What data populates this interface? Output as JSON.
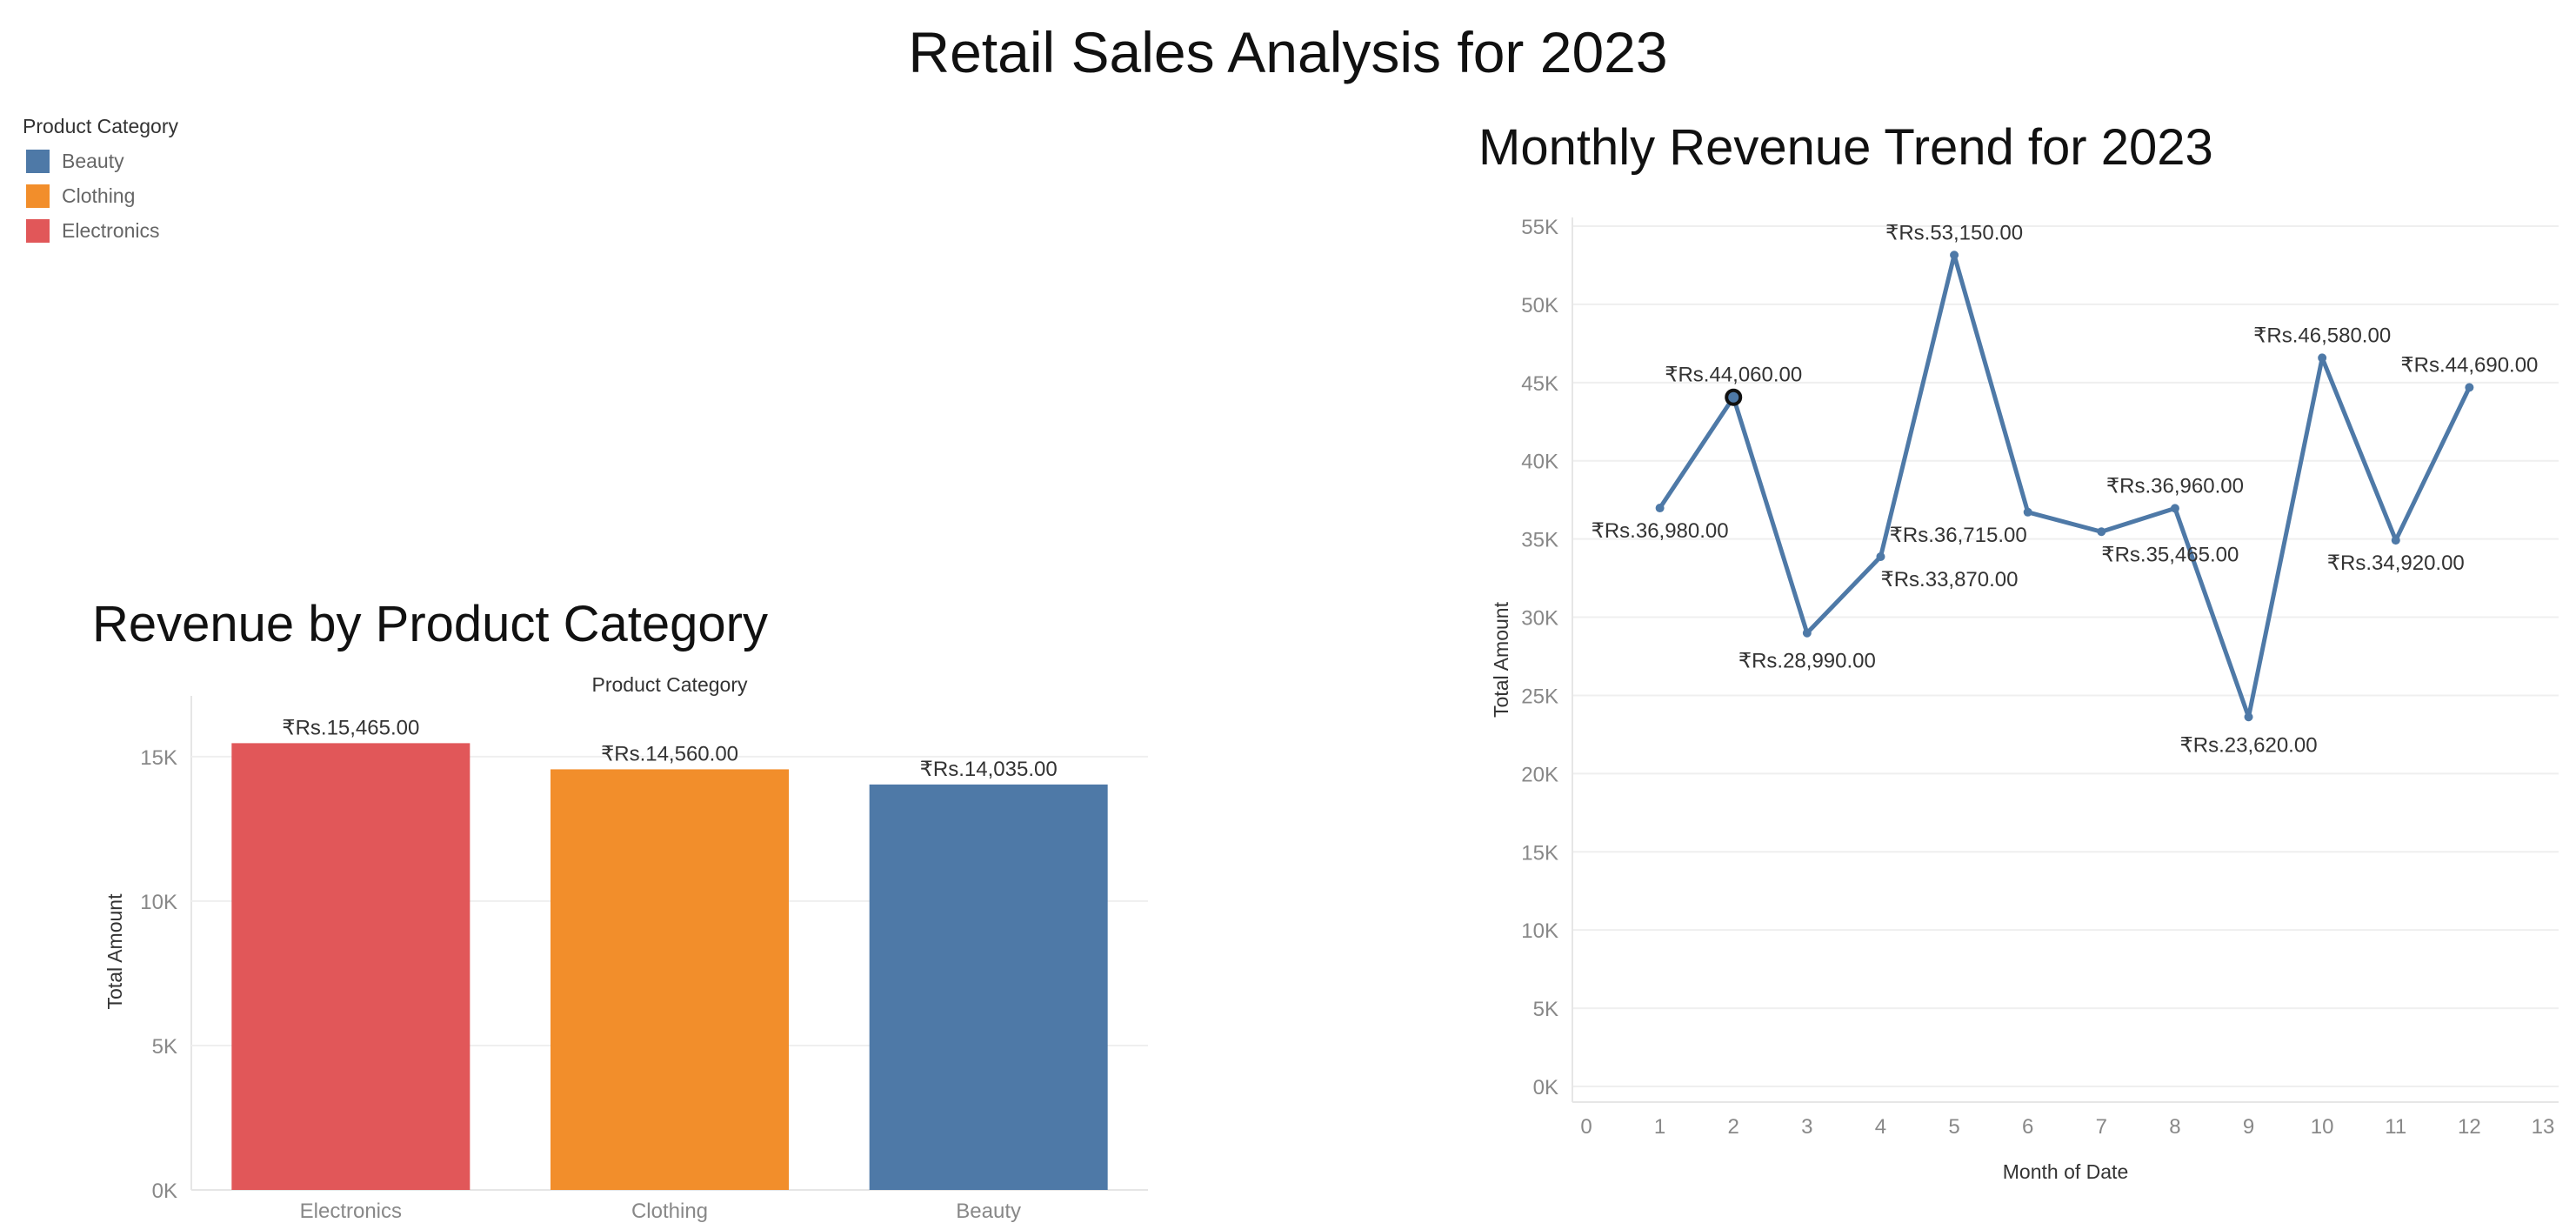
{
  "dashboard": {
    "title": "Retail Sales Analysis for 2023"
  },
  "legend": {
    "title": "Product Category",
    "items": [
      {
        "label": "Beauty",
        "color": "#4E79A7"
      },
      {
        "label": "Clothing",
        "color": "#F28E2B"
      },
      {
        "label": "Electronics",
        "color": "#E15759"
      }
    ]
  },
  "bar_chart": {
    "title": "Revenue by Product Category"
  },
  "line_chart": {
    "title": "Monthly Revenue Trend for 2023"
  },
  "chart_data": [
    {
      "type": "bar",
      "title": "Revenue by Product Category",
      "column_header": "Product Category",
      "categories": [
        "Electronics",
        "Clothing",
        "Beauty"
      ],
      "values": [
        15465,
        14560,
        14035
      ],
      "data_labels": [
        "₹Rs.15,465.00",
        "₹Rs.14,560.00",
        "₹Rs.14,035.00"
      ],
      "colors": [
        "#E15759",
        "#F28E2B",
        "#4E79A7"
      ],
      "ylabel": "Total Amount",
      "xlabel": "",
      "ylim": [
        0,
        16500
      ],
      "yticks": [
        0,
        5000,
        10000,
        15000
      ],
      "ytick_labels": [
        "0K",
        "5K",
        "10K",
        "15K"
      ],
      "grid": true
    },
    {
      "type": "line",
      "title": "Monthly Revenue Trend for 2023",
      "xlabel": "Month of Date",
      "ylabel": "Total Amount",
      "x": [
        1,
        2,
        3,
        4,
        5,
        6,
        7,
        8,
        9,
        10,
        11,
        12
      ],
      "series": [
        {
          "values": [
            36980,
            44060,
            28990,
            33870,
            53150,
            36715,
            35465,
            36960,
            23620,
            46580,
            34920,
            44690
          ],
          "color": "#4E79A7",
          "data_labels": [
            "₹Rs.36,980.00",
            "₹Rs.44,060.00",
            "₹Rs.28,990.00",
            "₹Rs.33,870.00",
            "₹Rs.53,150.00",
            "₹Rs.36,715.00",
            "₹Rs.35,465.00",
            "₹Rs.36,960.00",
            "₹Rs.23,620.00",
            "₹Rs.46,580.00",
            "₹Rs.34,920.00",
            "₹Rs.44,690.00"
          ]
        }
      ],
      "highlighted_point": 2,
      "xlim": [
        0,
        13
      ],
      "xticks": [
        0,
        1,
        2,
        3,
        4,
        5,
        6,
        7,
        8,
        9,
        10,
        11,
        12,
        13
      ],
      "ylim": [
        0,
        55000
      ],
      "yticks": [
        0,
        5000,
        10000,
        15000,
        20000,
        25000,
        30000,
        35000,
        40000,
        45000,
        50000,
        55000
      ],
      "ytick_labels": [
        "0K",
        "5K",
        "10K",
        "15K",
        "20K",
        "25K",
        "30K",
        "35K",
        "40K",
        "45K",
        "50K",
        "55K"
      ],
      "grid": true
    }
  ]
}
